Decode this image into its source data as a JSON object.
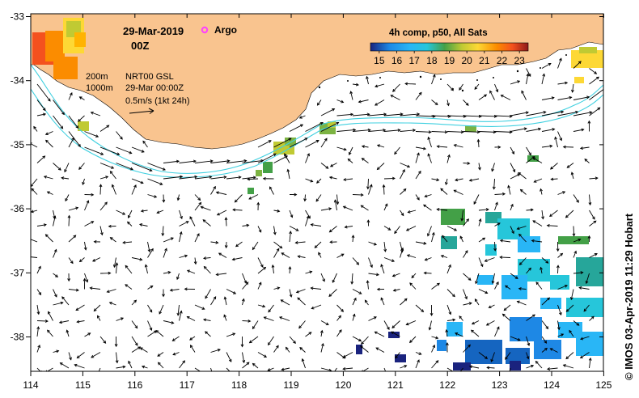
{
  "map": {
    "date": "29-Mar-2019",
    "hour": "00Z",
    "argo_label": "Argo",
    "contour_200": "200m",
    "contour_1000": "1000m",
    "product": "NRT00 GSL",
    "analysis_time": "29-Mar 00:00Z",
    "arrow_scale": "0.5m/s (1kt 24h)",
    "credit": "© IMOS 03-Apr-2019 11:29 Hobart"
  },
  "colorbar": {
    "title": "4h comp, p50, All Sats",
    "ticks": [
      "15",
      "16",
      "17",
      "18",
      "19",
      "20",
      "21",
      "22",
      "23"
    ],
    "min": 14.5,
    "max": 23.5,
    "colors": [
      "#1a237e",
      "#1565c0",
      "#1e88e5",
      "#29b6f6",
      "#26c6da",
      "#26a69a",
      "#43a047",
      "#7cb342",
      "#c0ca33",
      "#fdd835",
      "#ffb300",
      "#fb8c00",
      "#f4511e",
      "#c62828",
      "#8d1a1a"
    ]
  },
  "axes": {
    "lon_ticks": [
      "114",
      "115",
      "116",
      "117",
      "118",
      "119",
      "120",
      "121",
      "122",
      "123",
      "124",
      "125"
    ],
    "lat_ticks": [
      "-33",
      "-34",
      "-35",
      "-36",
      "-37",
      "-38"
    ]
  },
  "colors": {
    "land": "#f9c48f",
    "isobath": "#40d0e0",
    "argo": "#ff40ff"
  }
}
